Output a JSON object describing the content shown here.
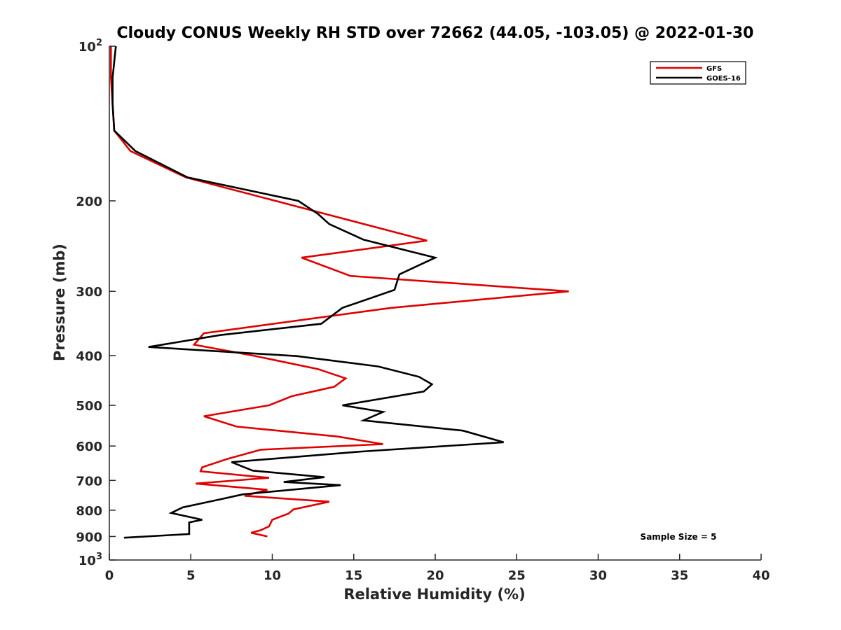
{
  "chart_data": {
    "type": "line",
    "title": "Cloudy CONUS Weekly RH STD over 72662 (44.05, -103.05) @ 2022-01-30",
    "xlabel": "Relative Humidity (%)",
    "ylabel": "Pressure (mb)",
    "xlim": [
      0,
      40
    ],
    "ylim": [
      100,
      1000
    ],
    "y_scale": "log",
    "y_reversed": true,
    "x_ticks": [
      "0",
      "5",
      "10",
      "15",
      "20",
      "25",
      "30",
      "35",
      "40"
    ],
    "y_ticks": [
      {
        "value": 100,
        "base": "10",
        "exp": "2"
      },
      {
        "value": 200,
        "label": "200"
      },
      {
        "value": 300,
        "label": "300"
      },
      {
        "value": 400,
        "label": "400"
      },
      {
        "value": 500,
        "label": "500"
      },
      {
        "value": 600,
        "label": "600"
      },
      {
        "value": 700,
        "label": "700"
      },
      {
        "value": 800,
        "label": "800"
      },
      {
        "value": 900,
        "label": "900"
      },
      {
        "value": 1000,
        "base": "10",
        "exp": "3"
      }
    ],
    "grid": false,
    "legend_position": "top-right",
    "annotation": "Sample Size = 5",
    "series": [
      {
        "name": "GFS",
        "color": "#e00000",
        "points": [
          [
            0.1,
            100
          ],
          [
            0.1,
            115
          ],
          [
            0.2,
            130
          ],
          [
            0.3,
            146
          ],
          [
            1.3,
            160
          ],
          [
            4.7,
            180
          ],
          [
            12.5,
            209
          ],
          [
            19.5,
            239
          ],
          [
            11.8,
            258
          ],
          [
            14.8,
            280
          ],
          [
            28.2,
            300
          ],
          [
            17.3,
            323
          ],
          [
            5.8,
            362
          ],
          [
            5.2,
            381
          ],
          [
            8.8,
            400
          ],
          [
            12.8,
            425
          ],
          [
            14.5,
            443
          ],
          [
            13.8,
            460
          ],
          [
            11.2,
            480
          ],
          [
            9.8,
            500
          ],
          [
            5.8,
            525
          ],
          [
            7.8,
            550
          ],
          [
            14.0,
            575
          ],
          [
            16.8,
            595
          ],
          [
            9.3,
            610
          ],
          [
            7.3,
            635
          ],
          [
            5.7,
            660
          ],
          [
            5.6,
            672
          ],
          [
            9.8,
            692
          ],
          [
            5.3,
            710
          ],
          [
            9.7,
            730
          ],
          [
            8.3,
            750
          ],
          [
            13.5,
            770
          ],
          [
            11.3,
            797
          ],
          [
            11.0,
            812
          ],
          [
            10.0,
            835
          ],
          [
            9.8,
            860
          ],
          [
            9.3,
            875
          ],
          [
            8.7,
            885
          ],
          [
            9.7,
            900
          ]
        ]
      },
      {
        "name": "GOES-16",
        "color": "#000000",
        "points": [
          [
            0.4,
            100
          ],
          [
            0.2,
            115
          ],
          [
            0.2,
            130
          ],
          [
            0.3,
            146
          ],
          [
            1.6,
            160
          ],
          [
            4.8,
            180
          ],
          [
            11.6,
            200
          ],
          [
            12.8,
            212
          ],
          [
            13.5,
            222
          ],
          [
            15.6,
            238
          ],
          [
            20.0,
            258
          ],
          [
            17.8,
            278
          ],
          [
            17.5,
            298
          ],
          [
            14.3,
            323
          ],
          [
            13.0,
            347
          ],
          [
            6.8,
            365
          ],
          [
            2.4,
            385
          ],
          [
            11.5,
            401
          ],
          [
            16.5,
            420
          ],
          [
            19.0,
            440
          ],
          [
            19.8,
            455
          ],
          [
            19.3,
            470
          ],
          [
            14.3,
            500
          ],
          [
            16.8,
            515
          ],
          [
            15.6,
            535
          ],
          [
            21.7,
            560
          ],
          [
            24.2,
            590
          ],
          [
            15.5,
            615
          ],
          [
            7.5,
            645
          ],
          [
            8.8,
            670
          ],
          [
            13.2,
            690
          ],
          [
            10.7,
            705
          ],
          [
            14.2,
            715
          ],
          [
            8.2,
            745
          ],
          [
            6.8,
            762
          ],
          [
            4.5,
            790
          ],
          [
            3.8,
            810
          ],
          [
            5.7,
            835
          ],
          [
            4.9,
            845
          ],
          [
            4.9,
            890
          ],
          [
            0.9,
            905
          ]
        ]
      }
    ]
  }
}
